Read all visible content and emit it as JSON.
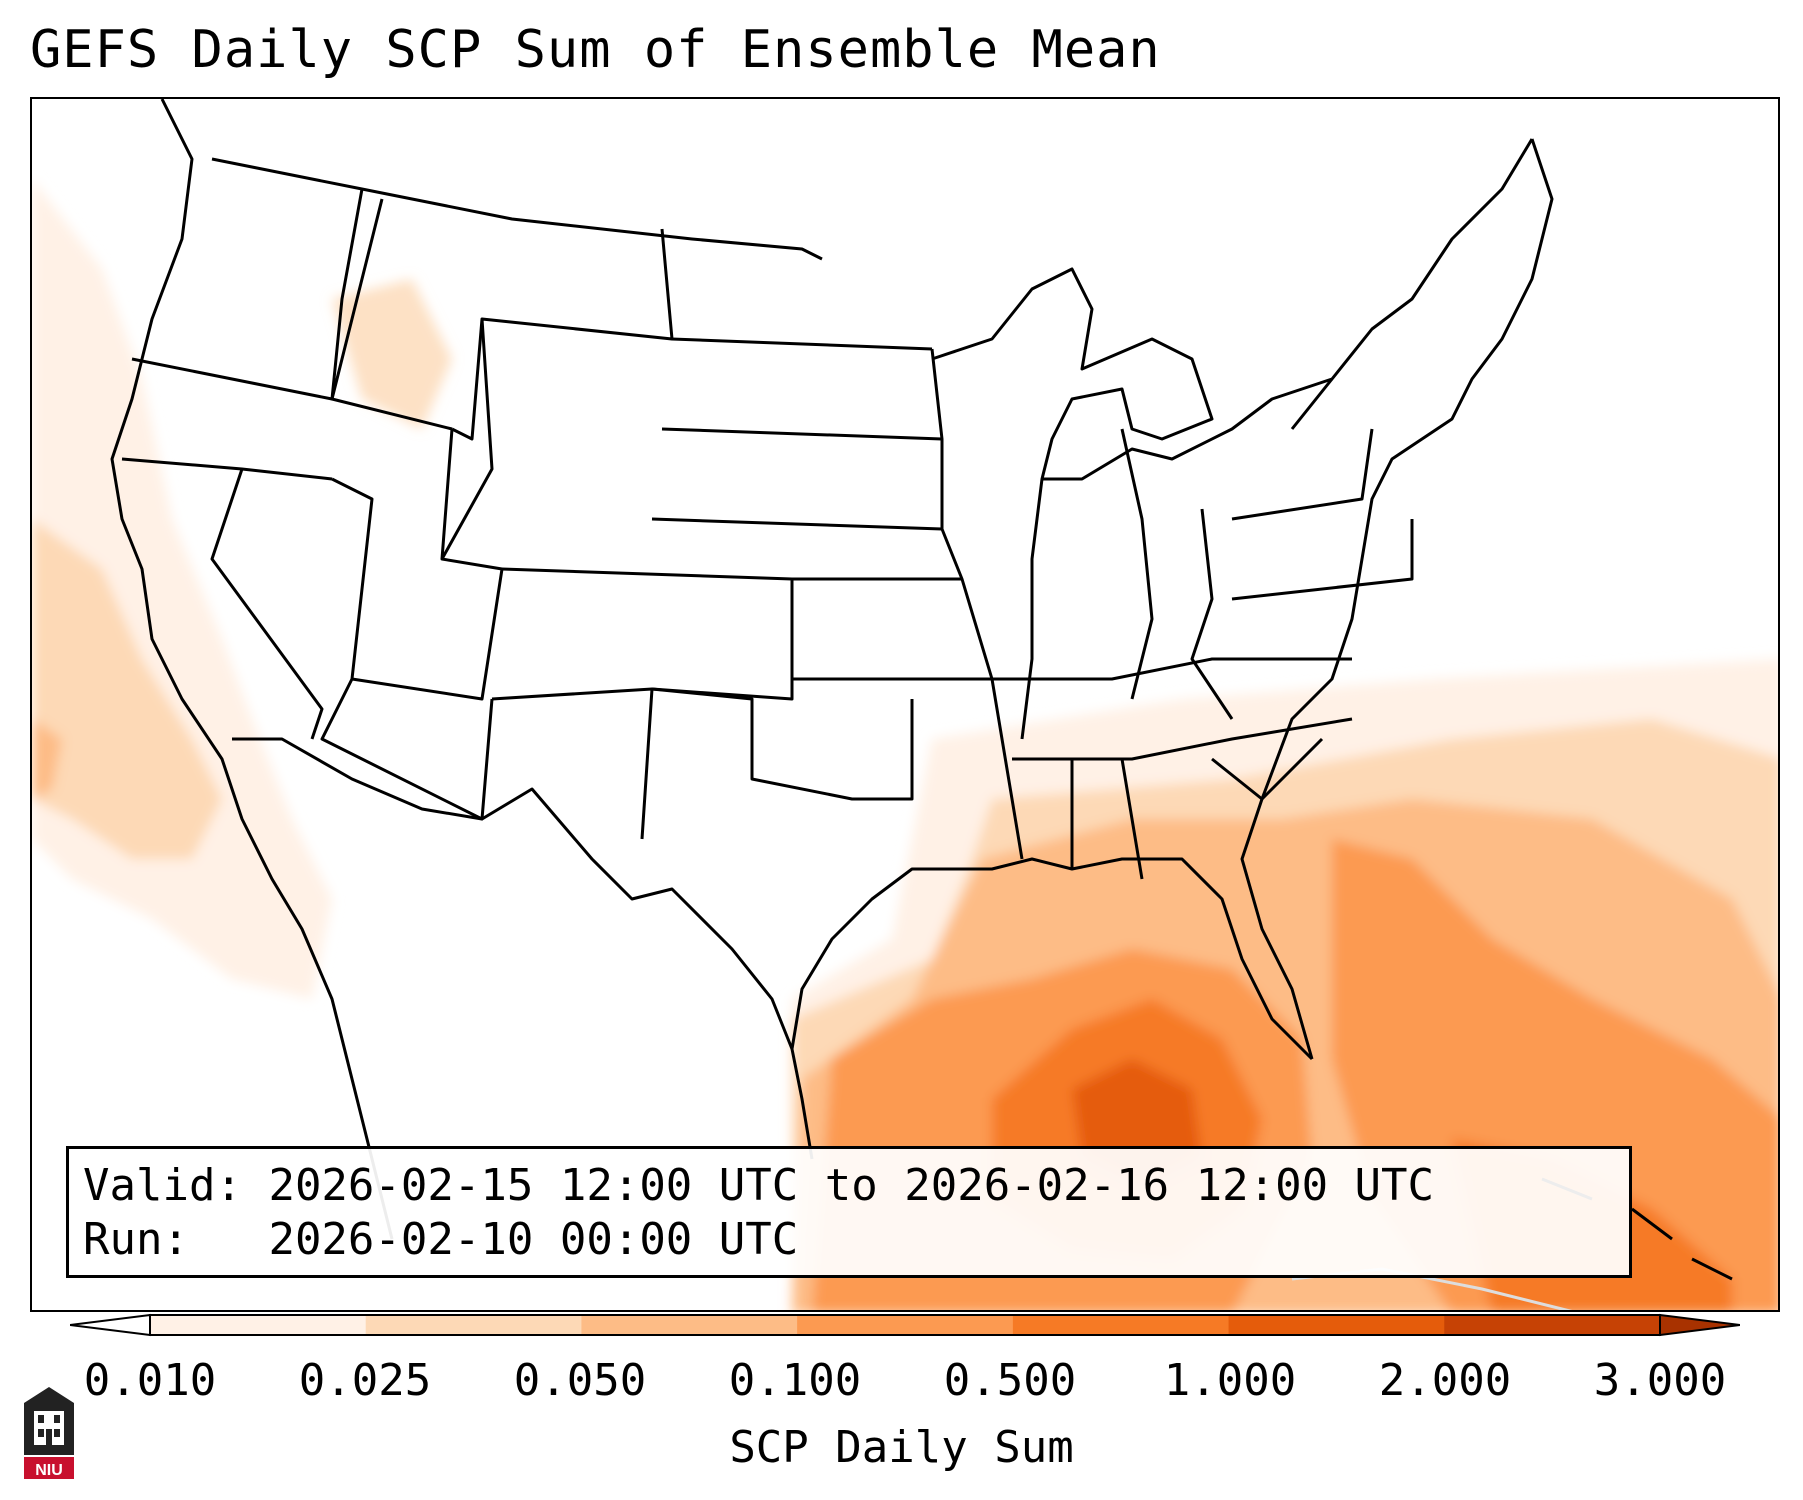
{
  "title": "GEFS Daily SCP Sum of Ensemble Mean",
  "info": {
    "valid_label": "Valid:",
    "valid_value": "2026-02-15 12:00 UTC to 2026-02-16 12:00 UTC",
    "run_label": "Run:",
    "run_value": "2026-02-10 00:00 UTC"
  },
  "colorbar": {
    "label": "SCP Daily Sum",
    "levels": [
      "0.010",
      "0.025",
      "0.050",
      "0.100",
      "0.500",
      "1.000",
      "2.000",
      "3.000"
    ],
    "colors": [
      "#fff1e6",
      "#fdd9b6",
      "#fdbc86",
      "#fc9a51",
      "#f67a25",
      "#e55c0b",
      "#c64205"
    ],
    "extend": "both"
  },
  "map": {
    "projection": "Lambert conformal, CONUS",
    "shaded_regions": [
      {
        "region": "Gulf of Mexico",
        "level": "1.000-2.000"
      },
      {
        "region": "Southeast US and Florida",
        "level": "0.100-0.500"
      },
      {
        "region": "Western Atlantic near Bahamas",
        "level": "0.500-1.000"
      },
      {
        "region": "Pacific off California",
        "level": "0.025-0.050"
      }
    ]
  },
  "logo": {
    "text": "NIU",
    "accent": "#c8102e"
  }
}
